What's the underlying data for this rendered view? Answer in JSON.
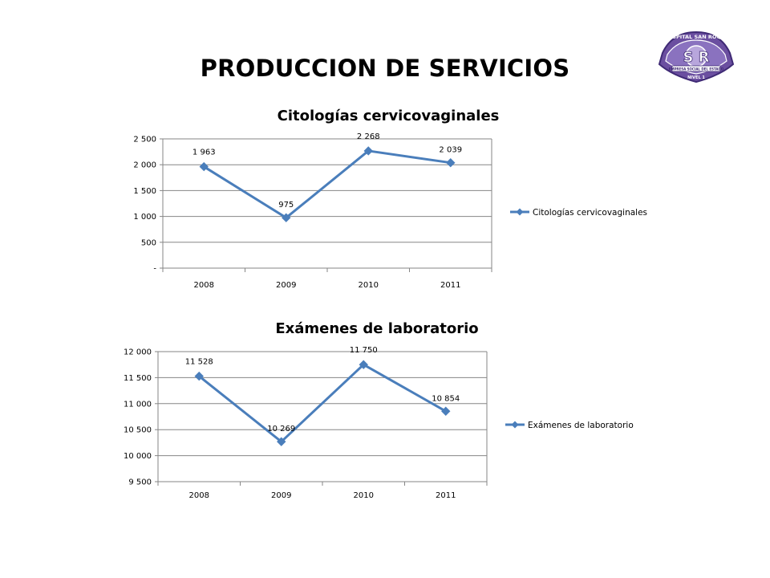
{
  "page": {
    "title": "PRODUCCION DE SERVICIOS",
    "logo": {
      "top_text": "HOSPITAL SAN ROQUE",
      "monogram": "S R",
      "ribbon_text": "EMPRESA SOCIAL DEL ESTADO",
      "bottom_text": "NIVEL 1",
      "colors": {
        "badge": "#6b4fa0",
        "outline": "#3f2a75",
        "light": "#b8a6dc"
      }
    }
  },
  "chart_data": [
    {
      "type": "line",
      "title": "Citologías cervicovaginales",
      "categories": [
        "2008",
        "2009",
        "2010",
        "2011"
      ],
      "series": [
        {
          "name": "Citologías cervicovaginales",
          "values": [
            1963,
            975,
            2268,
            2039
          ],
          "color": "#4a7ebb"
        }
      ],
      "data_labels": [
        "1 963",
        "975",
        "2 268",
        "2 039"
      ],
      "yticks": [
        0,
        500,
        1000,
        1500,
        2000,
        2500
      ],
      "ytick_labels": [
        "-",
        "500",
        "1 000",
        "1 500",
        "2 000",
        "2 500"
      ],
      "ylim": [
        0,
        2500
      ],
      "grid": true,
      "legend": "right",
      "xlabel": "",
      "ylabel": ""
    },
    {
      "type": "line",
      "title": "Exámenes de laboratorio",
      "categories": [
        "2008",
        "2009",
        "2010",
        "2011"
      ],
      "series": [
        {
          "name": "Exámenes de laboratorio",
          "values": [
            11528,
            10269,
            11750,
            10854
          ],
          "color": "#4a7ebb"
        }
      ],
      "data_labels": [
        "11 528",
        "10 269",
        "11 750",
        "10 854"
      ],
      "yticks": [
        9500,
        10000,
        10500,
        11000,
        11500,
        12000
      ],
      "ytick_labels": [
        "9 500",
        "10 000",
        "10 500",
        "11 000",
        "11 500",
        "12 000"
      ],
      "ylim": [
        9500,
        12000
      ],
      "grid": true,
      "legend": "right",
      "xlabel": "",
      "ylabel": ""
    }
  ]
}
